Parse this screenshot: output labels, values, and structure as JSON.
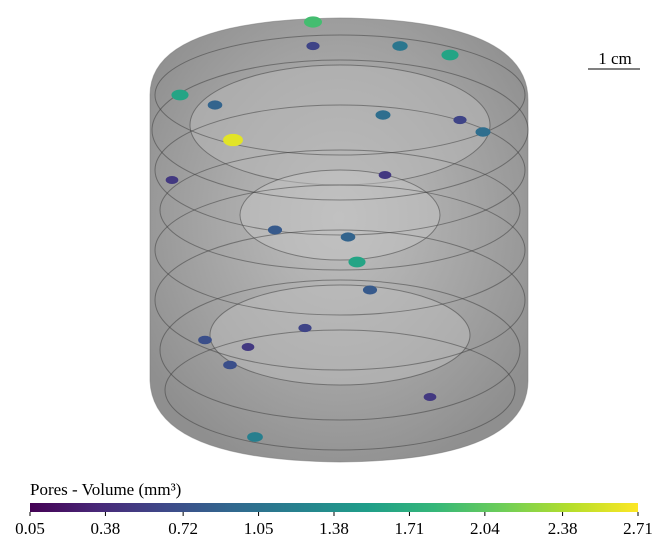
{
  "chart_data": {
    "type": "colorbar",
    "title": "Pores - Volume (mm³)",
    "annotation": "1 cm",
    "colormap": "viridis",
    "clim": [
      0.05,
      2.71
    ],
    "ticks": [
      0.05,
      0.38,
      0.72,
      1.05,
      1.38,
      1.71,
      2.04,
      2.38,
      2.71
    ],
    "values": [
      1.9,
      0.6,
      1.1,
      1.6,
      1.6,
      0.9,
      2.6,
      1.0,
      0.6,
      1.0,
      0.5,
      0.5,
      0.9,
      0.8,
      1.6,
      0.8,
      0.6,
      0.7,
      0.5,
      0.7,
      0.5,
      1.2
    ]
  }
}
